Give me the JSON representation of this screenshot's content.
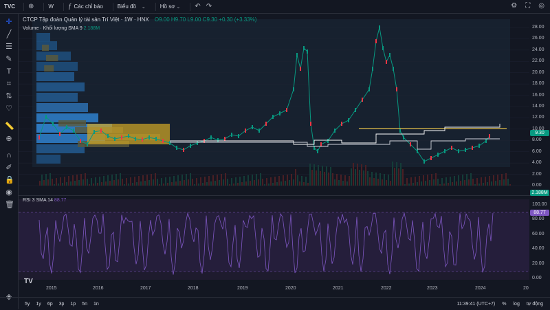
{
  "app": {
    "logo": "TVC"
  },
  "toolbar": {
    "interval": "W",
    "indicators_label": "Các chỉ báo",
    "chart_label": "Biểu đồ",
    "layout_label": "Hồ sơ"
  },
  "legend": {
    "title": "CTCP Tập đoàn Quản lý tài sản Trí Việt · 1W · HNX",
    "ohlc": "O9.00 H9.70 L9.00 C9.30 +0.30 (+3.33%)",
    "volume_label": "Volume · Khối lượng SMA 9",
    "volume_value": "2.188M"
  },
  "rsi": {
    "label": "RSI 3 SMA 14",
    "value": "88.77"
  },
  "price_axis": {
    "ticks": [
      "28.00",
      "26.00",
      "24.00",
      "22.00",
      "20.00",
      "18.00",
      "16.00",
      "14.00",
      "12.00",
      "10.00",
      "8.00",
      "6.00",
      "4.00",
      "2.00",
      "0.00"
    ],
    "last_price": "9.30",
    "volume_tag": "2.188M",
    "rsi_ticks": [
      "100.00",
      "80.00",
      "60.00",
      "40.00",
      "20.00",
      "0.00"
    ],
    "rsi_tag": "88.77"
  },
  "time_axis": {
    "labels": [
      "2015",
      "2016",
      "2017",
      "2018",
      "2019",
      "2020",
      "2021",
      "2022",
      "2023",
      "2024",
      "20"
    ]
  },
  "bottombar": {
    "ranges": [
      "5y",
      "1y",
      "6p",
      "3p",
      "1p",
      "5n",
      "1n"
    ],
    "clock": "11:39:41 (UTC+7)",
    "percent": "%",
    "log": "log",
    "auto": "tự động"
  },
  "colors": {
    "up": "#089981",
    "down": "#f23645",
    "rsi": "#7e57c2",
    "accent": "#2962ff"
  }
}
